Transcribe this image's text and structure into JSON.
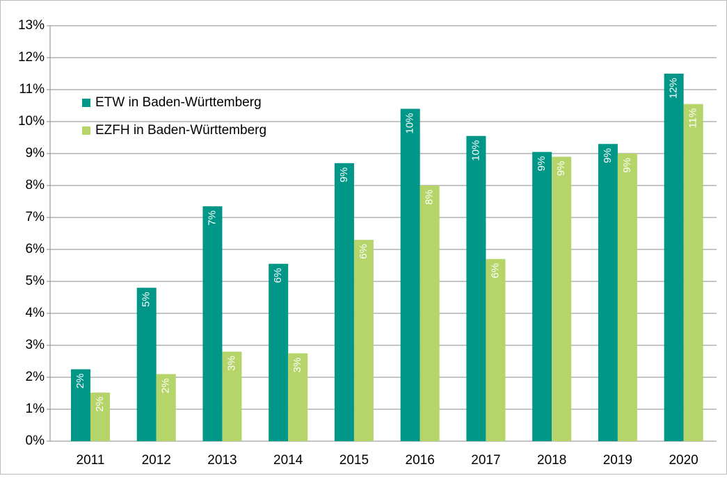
{
  "chart_data": {
    "type": "bar",
    "categories": [
      "2011",
      "2012",
      "2013",
      "2014",
      "2015",
      "2016",
      "2017",
      "2018",
      "2019",
      "2020"
    ],
    "series": [
      {
        "name": "ETW in Baden-Württemberg",
        "color": "#009688",
        "values": [
          2.25,
          4.8,
          7.35,
          5.55,
          8.7,
          10.4,
          9.55,
          9.05,
          9.3,
          11.5
        ],
        "value_labels": [
          "2%",
          "5%",
          "7%",
          "6%",
          "9%",
          "10%",
          "10%",
          "9%",
          "9%",
          "12%"
        ]
      },
      {
        "name": "EZFH in Baden-Württemberg",
        "color": "#b5d56a",
        "values": [
          1.52,
          2.1,
          2.8,
          2.75,
          6.3,
          8.0,
          5.7,
          8.9,
          9.0,
          10.55
        ],
        "value_labels": [
          "2%",
          "2%",
          "3%",
          "3%",
          "6%",
          "8%",
          "6%",
          "9%",
          "9%",
          "11%"
        ]
      }
    ],
    "ylim": [
      0,
      13
    ],
    "yticks": [
      {
        "value": 0,
        "label": "0%"
      },
      {
        "value": 1,
        "label": "1%"
      },
      {
        "value": 2,
        "label": "2%"
      },
      {
        "value": 3,
        "label": "3%"
      },
      {
        "value": 4,
        "label": "4%"
      },
      {
        "value": 5,
        "label": "5%"
      },
      {
        "value": 6,
        "label": "6%"
      },
      {
        "value": 7,
        "label": "7%"
      },
      {
        "value": 8,
        "label": "8%"
      },
      {
        "value": 9,
        "label": "9%"
      },
      {
        "value": 10,
        "label": "10%"
      },
      {
        "value": 11,
        "label": "11%"
      },
      {
        "value": 12,
        "label": "12%"
      },
      {
        "value": 13,
        "label": "13%"
      }
    ],
    "grid": true,
    "legend": "upper left"
  }
}
